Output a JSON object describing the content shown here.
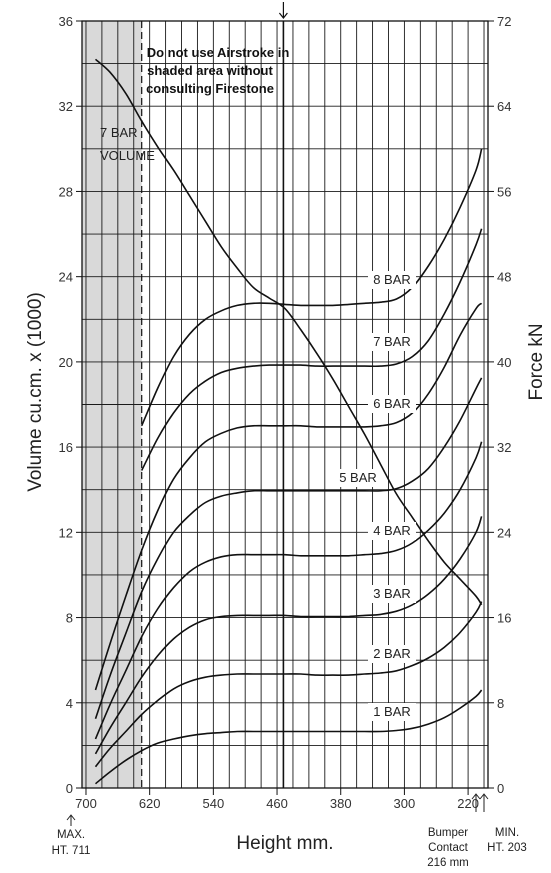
{
  "chart_data": {
    "type": "line",
    "x_axis": {
      "label": "Height mm.",
      "ticks": [
        700,
        620,
        540,
        460,
        380,
        300,
        220
      ],
      "range": [
        705,
        195
      ],
      "reversed": true
    },
    "y_left": {
      "label": "Volume cu.cm. x (1000)",
      "ticks": [
        0,
        4,
        8,
        12,
        16,
        20,
        24,
        28,
        32,
        36
      ],
      "range": [
        0,
        36
      ]
    },
    "y_right": {
      "label": "Force kN",
      "ticks": [
        0,
        8,
        16,
        24,
        32,
        40,
        48,
        56,
        64,
        72
      ],
      "range": [
        0,
        72
      ]
    },
    "grid": true,
    "shaded_region": {
      "x_from": 705,
      "x_to": 630
    },
    "dashed_line_x": 630,
    "marker_line_x": 452,
    "note": {
      "lines": [
        "Do not use Airstroke in",
        "shaded area without",
        "consulting Firestone"
      ]
    },
    "max_height": {
      "lines": [
        "MAX.",
        "HT. 711"
      ]
    },
    "bumper_contact": {
      "lines": [
        "Bumper",
        "Contact",
        "216 mm"
      ]
    },
    "min_height": {
      "lines": [
        "MIN.",
        "HT. 203"
      ]
    },
    "series": [
      {
        "name": "7 BAR VOLUME",
        "label_lines": [
          "7 BAR",
          "VOLUME"
        ],
        "axis": "left",
        "x": [
          688,
          670,
          650,
          630,
          610,
          590,
          570,
          550,
          530,
          510,
          490,
          470,
          450,
          430,
          410,
          390,
          370,
          350,
          330,
          310,
          290,
          270,
          250,
          230,
          210,
          203
        ],
        "values": [
          34.2,
          33.6,
          32.6,
          31.3,
          30.1,
          29.0,
          27.8,
          26.6,
          25.4,
          24.4,
          23.5,
          23.0,
          22.5,
          21.5,
          20.4,
          19.2,
          17.9,
          16.6,
          15.2,
          13.8,
          12.7,
          11.6,
          10.6,
          9.8,
          9.0,
          8.6
        ]
      },
      {
        "name": "8 BAR",
        "axis": "right",
        "x": [
          630,
          610,
          590,
          570,
          550,
          530,
          510,
          490,
          470,
          450,
          430,
          410,
          390,
          370,
          350,
          330,
          310,
          290,
          270,
          250,
          230,
          210,
          203
        ],
        "values": [
          34.0,
          37.5,
          40.5,
          42.6,
          44.0,
          44.8,
          45.3,
          45.5,
          45.5,
          45.4,
          45.3,
          45.3,
          45.3,
          45.4,
          45.5,
          45.6,
          45.9,
          47.0,
          49.0,
          51.5,
          54.5,
          58.0,
          60.0
        ]
      },
      {
        "name": "7 BAR",
        "axis": "right",
        "x": [
          630,
          610,
          590,
          570,
          550,
          530,
          510,
          490,
          470,
          450,
          430,
          410,
          390,
          370,
          350,
          330,
          310,
          290,
          270,
          250,
          230,
          210,
          203
        ],
        "values": [
          29.8,
          32.8,
          35.2,
          37.0,
          38.2,
          39.0,
          39.4,
          39.6,
          39.7,
          39.7,
          39.7,
          39.6,
          39.6,
          39.6,
          39.6,
          39.6,
          39.8,
          40.5,
          42.0,
          44.5,
          47.5,
          51.0,
          52.5
        ]
      },
      {
        "name": "6 BAR",
        "axis": "right",
        "x": [
          688,
          670,
          650,
          630,
          610,
          590,
          570,
          550,
          530,
          510,
          490,
          470,
          450,
          430,
          410,
          390,
          370,
          350,
          330,
          310,
          290,
          270,
          250,
          230,
          210,
          203
        ],
        "values": [
          9.2,
          13.5,
          18.0,
          22.3,
          26.0,
          29.0,
          31.0,
          32.5,
          33.3,
          33.8,
          34.0,
          34.0,
          34.0,
          34.0,
          33.9,
          33.9,
          33.9,
          33.9,
          34.0,
          34.3,
          35.2,
          37.0,
          39.5,
          42.5,
          45.0,
          45.5
        ]
      },
      {
        "name": "5 BAR",
        "axis": "right",
        "x": [
          688,
          670,
          650,
          630,
          610,
          590,
          570,
          550,
          530,
          510,
          490,
          470,
          450,
          430,
          410,
          390,
          370,
          350,
          330,
          310,
          290,
          270,
          250,
          230,
          210,
          203
        ],
        "values": [
          6.5,
          10.5,
          14.5,
          18.4,
          21.5,
          24.0,
          25.6,
          26.8,
          27.4,
          27.7,
          27.9,
          27.9,
          27.9,
          27.9,
          27.9,
          27.9,
          27.9,
          27.9,
          27.9,
          28.1,
          28.8,
          30.0,
          32.0,
          34.5,
          37.5,
          38.5
        ]
      },
      {
        "name": "4 BAR",
        "axis": "right",
        "x": [
          688,
          670,
          650,
          630,
          610,
          590,
          570,
          550,
          530,
          510,
          490,
          470,
          450,
          430,
          410,
          390,
          370,
          350,
          330,
          310,
          290,
          270,
          250,
          230,
          210,
          203
        ],
        "values": [
          4.6,
          7.8,
          11.0,
          14.2,
          16.8,
          18.8,
          20.3,
          21.2,
          21.7,
          21.9,
          21.9,
          21.9,
          21.9,
          21.8,
          21.8,
          21.8,
          21.8,
          21.9,
          22.0,
          22.3,
          23.0,
          24.2,
          25.8,
          28.0,
          31.0,
          32.5
        ]
      },
      {
        "name": "3 BAR",
        "axis": "right",
        "x": [
          688,
          670,
          650,
          630,
          610,
          590,
          570,
          550,
          530,
          510,
          490,
          470,
          450,
          430,
          410,
          390,
          370,
          350,
          330,
          310,
          290,
          270,
          250,
          230,
          210,
          203
        ],
        "values": [
          3.2,
          5.6,
          8.0,
          10.4,
          12.4,
          14.0,
          15.1,
          15.8,
          16.1,
          16.2,
          16.2,
          16.2,
          16.2,
          16.1,
          16.1,
          16.1,
          16.1,
          16.2,
          16.3,
          16.6,
          17.2,
          18.2,
          19.6,
          21.5,
          24.0,
          25.5
        ]
      },
      {
        "name": "2 BAR",
        "axis": "right",
        "x": [
          688,
          670,
          650,
          630,
          610,
          590,
          570,
          550,
          530,
          510,
          490,
          470,
          450,
          430,
          410,
          390,
          370,
          350,
          330,
          310,
          290,
          270,
          250,
          230,
          210,
          203
        ],
        "values": [
          2.0,
          3.7,
          5.3,
          6.9,
          8.2,
          9.3,
          10.0,
          10.4,
          10.6,
          10.7,
          10.7,
          10.7,
          10.7,
          10.7,
          10.6,
          10.6,
          10.6,
          10.7,
          10.8,
          11.0,
          11.5,
          12.2,
          13.2,
          14.6,
          16.5,
          17.5
        ]
      },
      {
        "name": "1 BAR",
        "axis": "right",
        "x": [
          688,
          670,
          650,
          630,
          610,
          590,
          570,
          550,
          530,
          510,
          490,
          470,
          450,
          430,
          410,
          390,
          370,
          350,
          330,
          310,
          290,
          270,
          250,
          230,
          210,
          203
        ],
        "values": [
          0.4,
          1.5,
          2.6,
          3.5,
          4.2,
          4.6,
          4.9,
          5.1,
          5.2,
          5.3,
          5.3,
          5.3,
          5.3,
          5.3,
          5.3,
          5.3,
          5.3,
          5.3,
          5.3,
          5.4,
          5.6,
          6.0,
          6.6,
          7.5,
          8.6,
          9.2
        ]
      }
    ]
  }
}
